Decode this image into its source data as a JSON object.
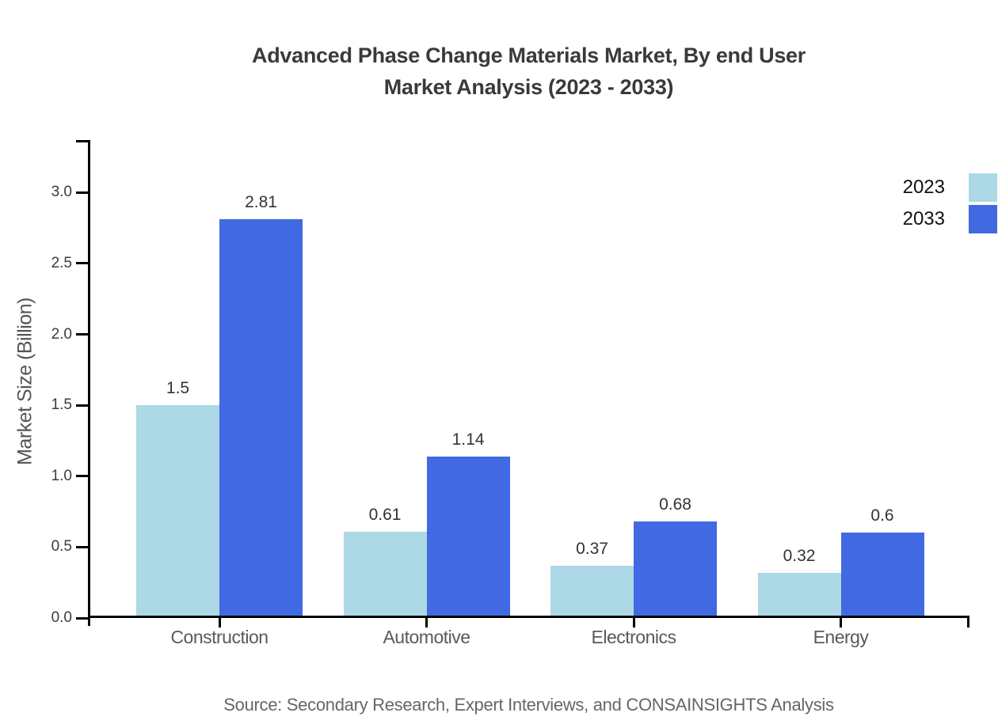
{
  "title": {
    "line1": "Advanced Phase Change Materials Market, By end User",
    "line2": "Market Analysis (2023 - 2033)"
  },
  "source": "Source: Secondary Research, Expert Interviews, and CONSAINSIGHTS Analysis",
  "chart_data": {
    "type": "bar",
    "title": "Advanced Phase Change Materials Market, By end User Market Analysis (2023 - 2033)",
    "categories": [
      "Construction",
      "Automotive",
      "Electronics",
      "Energy"
    ],
    "series": [
      {
        "name": "2023",
        "color": "#ADD8E6",
        "values": [
          1.5,
          0.61,
          0.37,
          0.32
        ]
      },
      {
        "name": "2033",
        "color": "#4169E1",
        "values": [
          2.81,
          1.14,
          0.68,
          0.6
        ]
      }
    ],
    "xlabel": "",
    "ylabel": "Market Size (Billion)",
    "ylim": [
      0,
      3.37
    ],
    "yticks": [
      0.0,
      0.5,
      1.0,
      1.5,
      2.0,
      2.5,
      3.0
    ],
    "ytick_labels": [
      "0.0",
      "0.5",
      "1.0",
      "1.5",
      "2.0",
      "2.5",
      "3.0"
    ],
    "grid": false,
    "legend_position": "top-right",
    "colors": {
      "series_2023": "#ADD8E6",
      "series_2033": "#4169E1",
      "axis": "#000000",
      "title_text": "#3a3a3a",
      "label_text": "#595959",
      "source_text": "#666666"
    }
  }
}
